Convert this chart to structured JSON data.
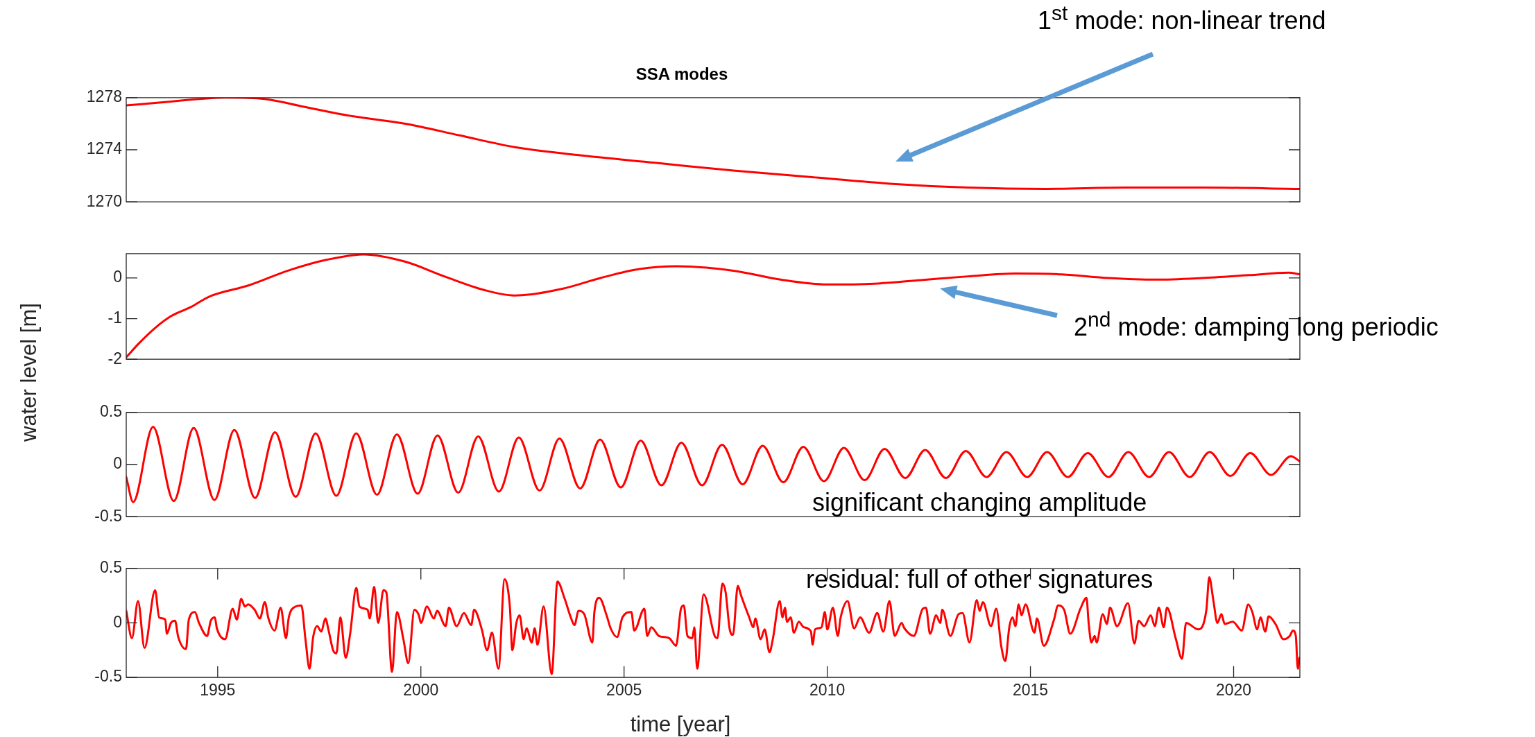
{
  "chart_data": [
    {
      "type": "line",
      "title": "SSA modes",
      "annotations": [
        "1$^{st}$ mode: non-linear trend"
      ],
      "xlim": [
        1992.75,
        2021.63
      ],
      "ylim": [
        1270,
        1278
      ],
      "yticks": [
        1270,
        1274,
        1278
      ],
      "tick_labels": "y",
      "grid": false,
      "legend": false,
      "series": [
        {
          "color": "#ff0000",
          "x": [
            1992.75,
            1993.85,
            1995.19,
            1996.15,
            1997.12,
            1998.27,
            1999.62,
            2000.96,
            2002.31,
            2003.85,
            2005.77,
            2007.69,
            2009.62,
            2011.54,
            2013.46,
            2015.38,
            2017.31,
            2019.23,
            2021.63
          ],
          "values": [
            1277.4,
            1277.7,
            1278.0,
            1277.9,
            1277.3,
            1276.6,
            1276.0,
            1275.1,
            1274.2,
            1273.6,
            1273.0,
            1272.4,
            1271.9,
            1271.4,
            1271.1,
            1271.0,
            1271.1,
            1271.1,
            1271.0
          ]
        }
      ]
    },
    {
      "type": "line",
      "ylabel": "water level [m]",
      "annotations": [
        "2$^{nd}$ mode: damping long periodic"
      ],
      "xlim": [
        1992.75,
        2021.63
      ],
      "ylim": [
        -2,
        0.6
      ],
      "yticks": [
        -2,
        -1,
        0
      ],
      "tick_labels": "y",
      "grid": false,
      "legend": false,
      "series": [
        {
          "color": "#ff0000",
          "x": [
            1992.75,
            1993.08,
            1993.46,
            1993.85,
            1994.33,
            1994.81,
            1995.77,
            1996.73,
            1997.69,
            1998.6,
            1999.62,
            2000.58,
            2001.54,
            2002.3,
            2003.46,
            2004.42,
            2005.38,
            2006.3,
            2007.69,
            2008.85,
            2010.0,
            2011.15,
            2012.31,
            2013.46,
            2014.62,
            2015.77,
            2016.92,
            2018.08,
            2019.23,
            2020.38,
            2021.35,
            2021.63
          ],
          "values": [
            -1.95,
            -1.59,
            -1.23,
            -0.94,
            -0.72,
            -0.45,
            -0.18,
            0.18,
            0.45,
            0.58,
            0.4,
            0.04,
            -0.29,
            -0.43,
            -0.27,
            0.0,
            0.22,
            0.29,
            0.18,
            -0.04,
            -0.16,
            -0.14,
            -0.05,
            0.04,
            0.11,
            0.09,
            0.0,
            -0.04,
            0.0,
            0.07,
            0.13,
            0.09
          ]
        }
      ]
    },
    {
      "type": "line",
      "annotations": [
        "significant changing amplitude"
      ],
      "xlim": [
        1992.75,
        2021.63
      ],
      "ylim": [
        -0.5,
        0.5
      ],
      "yticks": [
        -0.5,
        0,
        0.5
      ],
      "tick_labels": "y",
      "grid": false,
      "legend": false,
      "series": [
        {
          "color": "#ff0000",
          "x": [
            1992.75,
            1992.92,
            1993.41,
            1993.92,
            1994.41,
            1994.92,
            1995.41,
            1995.92,
            1996.41,
            1996.92,
            1997.41,
            1997.92,
            1998.41,
            1998.92,
            1999.41,
            1999.92,
            2000.41,
            2000.92,
            2001.41,
            2001.92,
            2002.41,
            2002.92,
            2003.41,
            2003.92,
            2004.41,
            2004.92,
            2005.41,
            2005.92,
            2006.41,
            2006.92,
            2007.41,
            2007.92,
            2008.41,
            2008.92,
            2009.41,
            2009.92,
            2010.41,
            2010.92,
            2011.41,
            2011.92,
            2012.41,
            2012.92,
            2013.41,
            2013.92,
            2014.41,
            2014.92,
            2015.41,
            2015.92,
            2016.41,
            2016.92,
            2017.41,
            2017.92,
            2018.41,
            2018.92,
            2019.41,
            2019.92,
            2020.41,
            2020.92,
            2021.41,
            2021.63
          ],
          "values": [
            -0.12,
            -0.36,
            0.36,
            -0.35,
            0.35,
            -0.34,
            0.33,
            -0.32,
            0.31,
            -0.31,
            0.3,
            -0.3,
            0.3,
            -0.29,
            0.29,
            -0.28,
            0.28,
            -0.27,
            0.27,
            -0.26,
            0.26,
            -0.25,
            0.25,
            -0.23,
            0.24,
            -0.22,
            0.23,
            -0.2,
            0.21,
            -0.2,
            0.19,
            -0.19,
            0.18,
            -0.17,
            0.17,
            -0.16,
            0.16,
            -0.15,
            0.15,
            -0.13,
            0.14,
            -0.13,
            0.13,
            -0.12,
            0.12,
            -0.12,
            0.12,
            -0.12,
            0.11,
            -0.12,
            0.12,
            -0.12,
            0.12,
            -0.12,
            0.12,
            -0.11,
            0.11,
            -0.1,
            0.08,
            0.03
          ]
        }
      ]
    },
    {
      "type": "line",
      "xlabel": "time [year]",
      "annotations": [
        "residual: full of other signatures"
      ],
      "xlim": [
        1992.75,
        2021.63
      ],
      "xticks": [
        1995,
        2000,
        2005,
        2010,
        2015,
        2020
      ],
      "ylim": [
        -0.5,
        0.5
      ],
      "yticks": [
        -0.5,
        0,
        0.5
      ],
      "grid": false,
      "legend": false,
      "series": [
        {
          "color": "#ff0000",
          "x": [
            1992.75,
            1992.89,
            1993.04,
            1993.2,
            1993.46,
            1993.56,
            1993.71,
            1993.75,
            1993.85,
            1993.95,
            1994.03,
            1994.22,
            1994.29,
            1994.44,
            1994.54,
            1994.74,
            1994.83,
            1994.93,
            1994.98,
            1995.18,
            1995.37,
            1995.47,
            1995.58,
            1995.67,
            1995.75,
            1995.91,
            1996.04,
            1996.16,
            1996.25,
            1996.4,
            1996.55,
            1996.68,
            1996.75,
            1996.92,
            1997.06,
            1997.16,
            1997.26,
            1997.35,
            1997.45,
            1997.55,
            1997.65,
            1997.73,
            1997.84,
            1997.92,
            1998.02,
            1998.15,
            1998.26,
            1998.41,
            1998.49,
            1998.69,
            1998.74,
            1998.85,
            1998.95,
            1999.08,
            1999.15,
            1999.29,
            1999.41,
            1999.57,
            1999.69,
            1999.84,
            1999.95,
            2000.0,
            2000.15,
            2000.32,
            2000.4,
            2000.61,
            2000.69,
            2000.88,
            2001.06,
            2001.24,
            2001.31,
            2001.5,
            2001.63,
            2001.75,
            2001.91,
            2002.06,
            2002.19,
            2002.25,
            2002.35,
            2002.43,
            2002.53,
            2002.6,
            2002.73,
            2002.8,
            2002.87,
            2003.02,
            2003.22,
            2003.36,
            2003.54,
            2003.69,
            2003.78,
            2003.88,
            2004.02,
            2004.22,
            2004.27,
            2004.39,
            2004.57,
            2004.67,
            2004.83,
            2004.96,
            2005.18,
            2005.25,
            2005.5,
            2005.57,
            2005.67,
            2005.86,
            2006.11,
            2006.28,
            2006.4,
            2006.47,
            2006.56,
            2006.68,
            2006.73,
            2006.8,
            2006.96,
            2007.23,
            2007.3,
            2007.42,
            2007.5,
            2007.6,
            2007.68,
            2007.8,
            2007.88,
            2008.08,
            2008.18,
            2008.23,
            2008.36,
            2008.46,
            2008.58,
            2008.66,
            2008.83,
            2008.9,
            2008.96,
            2009.01,
            2009.1,
            2009.18,
            2009.3,
            2009.42,
            2009.6,
            2009.64,
            2009.7,
            2009.86,
            2009.94,
            2010.0,
            2010.14,
            2010.26,
            2010.33,
            2010.5,
            2010.66,
            2010.81,
            2011.03,
            2011.23,
            2011.38,
            2011.53,
            2011.66,
            2011.83,
            2011.9,
            2012.13,
            2012.35,
            2012.43,
            2012.53,
            2012.68,
            2012.78,
            2012.83,
            2013.03,
            2013.23,
            2013.33,
            2013.5,
            2013.68,
            2013.75,
            2013.83,
            2014.03,
            2014.16,
            2014.28,
            2014.38,
            2014.48,
            2014.56,
            2014.63,
            2014.71,
            2014.78,
            2014.88,
            2015.1,
            2015.16,
            2015.33,
            2015.58,
            2015.68,
            2015.83,
            2015.98,
            2016.23,
            2016.38,
            2016.43,
            2016.5,
            2016.58,
            2016.63,
            2016.78,
            2016.88,
            2016.96,
            2017.13,
            2017.4,
            2017.56,
            2017.66,
            2017.8,
            2017.96,
            2018.06,
            2018.16,
            2018.28,
            2018.36,
            2018.58,
            2018.73,
            2018.83,
            2019.13,
            2019.33,
            2019.4,
            2019.5,
            2019.6,
            2019.7,
            2019.78,
            2019.98,
            2020.2,
            2020.36,
            2020.46,
            2020.58,
            2020.66,
            2020.78,
            2020.86,
            2021.03,
            2021.23,
            2021.38,
            2021.46,
            2021.53,
            2021.58,
            2021.62
          ],
          "values": [
            0.11,
            -0.14,
            0.2,
            -0.23,
            0.3,
            0.05,
            0.03,
            -0.1,
            0.0,
            0.02,
            -0.13,
            -0.24,
            0.03,
            0.1,
            0.0,
            -0.12,
            0.02,
            0.05,
            -0.05,
            -0.15,
            0.13,
            0.03,
            0.22,
            0.15,
            0.17,
            0.12,
            0.04,
            0.19,
            0.04,
            -0.07,
            0.14,
            -0.14,
            0.05,
            0.15,
            0.16,
            -0.15,
            -0.42,
            -0.13,
            -0.03,
            -0.08,
            0.04,
            -0.07,
            -0.25,
            -0.28,
            0.05,
            -0.32,
            -0.1,
            0.32,
            0.15,
            0.12,
            0.04,
            0.33,
            0.0,
            0.3,
            0.28,
            -0.45,
            0.1,
            -0.15,
            -0.37,
            0.12,
            0.07,
            0.0,
            0.15,
            0.04,
            0.11,
            -0.03,
            0.14,
            -0.03,
            0.09,
            -0.02,
            0.12,
            -0.06,
            -0.25,
            -0.09,
            -0.42,
            0.4,
            0.15,
            -0.25,
            0.0,
            0.07,
            -0.15,
            -0.05,
            -0.18,
            -0.05,
            -0.2,
            0.15,
            -0.47,
            0.38,
            0.22,
            0.05,
            -0.02,
            0.11,
            0.08,
            -0.18,
            0.1,
            0.23,
            0.07,
            -0.05,
            -0.13,
            0.05,
            0.1,
            -0.07,
            0.13,
            -0.12,
            -0.04,
            -0.12,
            -0.14,
            -0.21,
            0.13,
            0.16,
            -0.12,
            -0.14,
            -0.04,
            -0.42,
            0.26,
            -0.12,
            -0.14,
            0.36,
            0.28,
            -0.06,
            -0.11,
            0.34,
            0.25,
            0.05,
            -0.04,
            0.04,
            -0.15,
            -0.06,
            -0.27,
            -0.15,
            0.2,
            0.05,
            0.14,
            0.01,
            0.05,
            -0.09,
            0.01,
            -0.04,
            -0.08,
            -0.2,
            -0.06,
            -0.04,
            0.1,
            -0.06,
            0.14,
            -0.12,
            0.05,
            0.2,
            -0.05,
            0.05,
            -0.09,
            0.09,
            -0.08,
            0.2,
            -0.12,
            0.0,
            -0.05,
            -0.12,
            0.13,
            0.14,
            -0.1,
            0.07,
            0.0,
            0.12,
            -0.12,
            0.08,
            0.09,
            -0.18,
            0.21,
            0.11,
            0.19,
            -0.03,
            0.13,
            -0.21,
            -0.35,
            -0.04,
            0.05,
            -0.03,
            0.17,
            0.07,
            0.17,
            -0.09,
            0.04,
            -0.21,
            0.03,
            0.16,
            0.12,
            -0.1,
            0.13,
            0.23,
            0.01,
            -0.18,
            -0.12,
            -0.18,
            0.08,
            -0.01,
            0.14,
            -0.03,
            0.18,
            -0.19,
            0.02,
            -0.03,
            0.07,
            -0.03,
            0.14,
            -0.04,
            0.14,
            -0.15,
            -0.33,
            0.0,
            -0.06,
            0.12,
            0.42,
            0.21,
            0.0,
            0.08,
            -0.01,
            0.01,
            -0.07,
            0.17,
            0.1,
            -0.06,
            0.05,
            -0.08,
            0.06,
            -0.01,
            -0.15,
            -0.12,
            -0.07,
            -0.12,
            -0.42,
            -0.32
          ]
        }
      ]
    }
  ]
}
